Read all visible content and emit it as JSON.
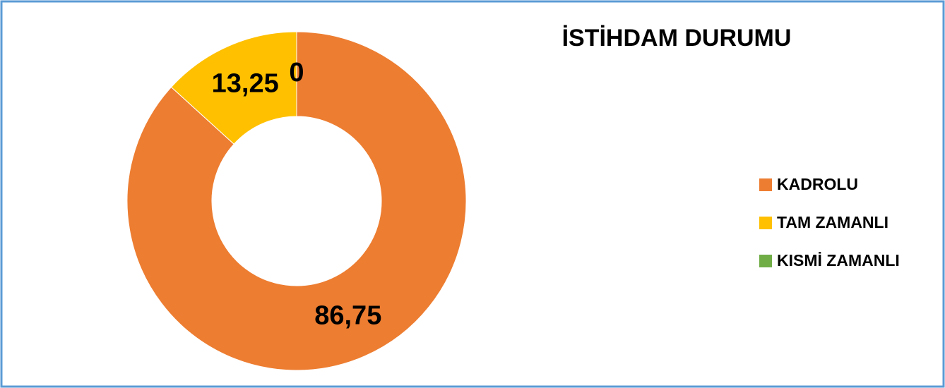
{
  "chart_data": {
    "type": "donut",
    "title": "İSTİHDAM DURUMU",
    "categories": [
      "KADROLU",
      "TAM ZAMANLI",
      "KISMİ ZAMANLI"
    ],
    "values": [
      86.75,
      13.25,
      0
    ],
    "value_labels": [
      "86,75",
      "13,25",
      "0"
    ],
    "colors": [
      "#ed7d31",
      "#ffc000",
      "#70ad47"
    ],
    "legend": "right"
  }
}
